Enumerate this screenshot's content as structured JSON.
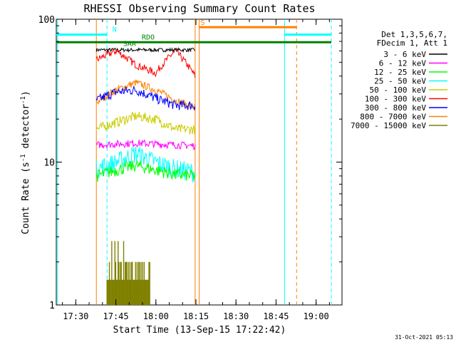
{
  "chart_data": {
    "type": "line",
    "title": "RHESSI Observing Summary Count Rates",
    "xlabel": "Start Time (13-Sep-15 17:22:42)",
    "ylabel_main": "Count Rate (s",
    "ylabel_sup": "-1",
    "ylabel_mid": " detector",
    "ylabel_end": ")",
    "x_tick_labels": [
      "17:30",
      "17:45",
      "18:00",
      "18:15",
      "18:30",
      "18:45",
      "19:00"
    ],
    "x_ticks_minutes": [
      7.3,
      22.3,
      37.3,
      52.3,
      67.3,
      82.3,
      97.3
    ],
    "xlim_minutes": [
      0,
      107
    ],
    "y_scale": "log",
    "ylim": [
      1,
      100
    ],
    "y_tick_labels": [
      "1",
      "10",
      "100"
    ],
    "y_tick_values": [
      1,
      10,
      100
    ],
    "legend_header": [
      "Det 1,3,5,6,7,",
      "FDecim 1, Att 1"
    ],
    "legend": [
      {
        "label": "3 - 6 keV",
        "color": "#000000"
      },
      {
        "label": "6 - 12 keV",
        "color": "#ff00ff"
      },
      {
        "label": "12 - 25 keV",
        "color": "#00ff00"
      },
      {
        "label": "25 - 50 keV",
        "color": "#00ffff"
      },
      {
        "label": "50 - 100 keV",
        "color": "#cccc00"
      },
      {
        "label": "100 - 300 keV",
        "color": "#ff0000"
      },
      {
        "label": "300 - 800 keV",
        "color": "#0000ff"
      },
      {
        "label": "800 - 7000 keV",
        "color": "#ff8000"
      },
      {
        "label": "7000 - 15000 keV",
        "color": "#808000"
      }
    ],
    "bars": [
      {
        "label": "N",
        "color": "#00ffff",
        "y": 78,
        "segments": [
          [
            0,
            19
          ],
          [
            85.5,
            103
          ]
        ]
      },
      {
        "label": "S",
        "color": "#ff8000",
        "y": 88,
        "segments": [
          [
            53.5,
            90
          ]
        ]
      },
      {
        "label": "RDO",
        "color": "#008000",
        "y": 69,
        "segments": [
          [
            0,
            103
          ]
        ]
      }
    ],
    "bar_labels": [
      {
        "text": "N",
        "color": "#00ffff",
        "x": 21,
        "y": 82
      },
      {
        "text": "S",
        "color": "#ff8000",
        "x": 54,
        "y": 91
      },
      {
        "text": "RDO",
        "color": "#008000",
        "x": 32,
        "y": 72
      },
      {
        "text": "SAA",
        "color": "#008000",
        "x": 25,
        "y": 65
      }
    ],
    "vlines": [
      {
        "x": 0.5,
        "color": "#00ffff",
        "dash": false
      },
      {
        "x": 19,
        "color": "#00ffff",
        "dash": true
      },
      {
        "x": 15,
        "color": "#ff8000",
        "dash": false
      },
      {
        "x": 52,
        "color": "#ff8000",
        "dash": false
      },
      {
        "x": 53.5,
        "color": "#ff8000",
        "dash": false
      },
      {
        "x": 85.5,
        "color": "#00ffff",
        "dash": false
      },
      {
        "x": 90,
        "color": "#ff8000",
        "dash": true
      },
      {
        "x": 103,
        "color": "#00ffff",
        "dash": true
      }
    ],
    "series_window": [
      15,
      52
    ],
    "series": [
      {
        "color": "#000000",
        "level": [
          61,
          61,
          61,
          61,
          61,
          61
        ],
        "noise": 0.03,
        "drop_at": null
      },
      {
        "color": "#ff0000",
        "level": [
          52,
          60,
          48,
          42,
          60,
          40
        ],
        "noise": 0.06,
        "drop_at": null
      },
      {
        "color": "#ff8000",
        "level": [
          26,
          32,
          36,
          32,
          27,
          24
        ],
        "noise": 0.06,
        "drop_at": null
      },
      {
        "color": "#0000ff",
        "level": [
          27,
          31,
          32,
          28,
          25,
          25
        ],
        "noise": 0.08,
        "drop_at": null
      },
      {
        "color": "#cccc00",
        "level": [
          17,
          19,
          21,
          20,
          17,
          17
        ],
        "noise": 0.08,
        "drop_at": null
      },
      {
        "color": "#ff00ff",
        "level": [
          13.2,
          13.4,
          13.6,
          13.4,
          13.2,
          13.0
        ],
        "noise": 0.06,
        "drop_at": null
      },
      {
        "color": "#00ffff",
        "level": [
          9,
          10,
          11.5,
          10,
          9,
          8.5
        ],
        "noise": 0.16,
        "drop_at": null
      },
      {
        "color": "#00ff00",
        "level": [
          8,
          8.8,
          9.5,
          8.8,
          8.2,
          8
        ],
        "noise": 0.1,
        "drop_at": null
      }
    ],
    "high_energy": {
      "color": "#808000",
      "window": [
        19,
        35
      ],
      "levels": [
        1,
        2,
        1.5
      ]
    }
  },
  "stamp": "31-Oct-2021 05:13"
}
